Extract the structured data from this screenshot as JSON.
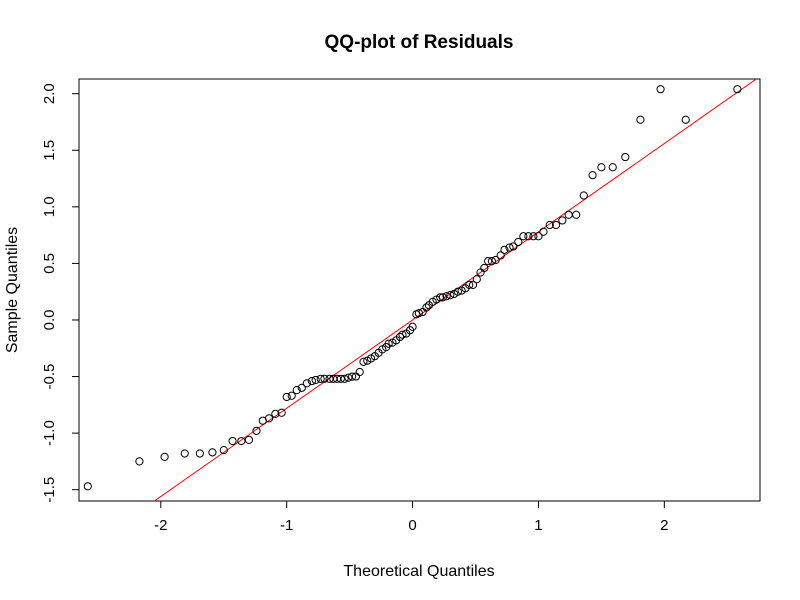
{
  "chart_data": {
    "type": "scatter",
    "title": "QQ-plot of Residuals",
    "xlabel": "Theoretical Quantiles",
    "ylabel": "Sample Quantiles",
    "xlim": [
      -2.65,
      2.76
    ],
    "ylim": [
      -1.6,
      2.13
    ],
    "xticks": [
      -2,
      -1,
      0,
      1,
      2
    ],
    "xtick_labels": [
      "-2",
      "-1",
      "0",
      "1",
      "2"
    ],
    "yticks": [
      -1.5,
      -1.0,
      -0.5,
      0.0,
      0.5,
      1.0,
      1.5,
      2.0
    ],
    "ytick_labels": [
      "-1.5",
      "-1.0",
      "-0.5",
      "0.0",
      "0.5",
      "1.0",
      "1.5",
      "2.0"
    ],
    "grid": false,
    "point_color": "#000000",
    "line_color": "#ff0000",
    "reference_line": {
      "intercept": 0.0,
      "slope": 0.78
    },
    "x": [
      -2.58,
      -2.17,
      -1.97,
      -1.81,
      -1.69,
      -1.59,
      -1.5,
      -1.43,
      -1.36,
      -1.3,
      -1.24,
      -1.19,
      -1.14,
      -1.09,
      -1.04,
      -1.0,
      -0.96,
      -0.92,
      -0.88,
      -0.84,
      -0.8,
      -0.77,
      -0.73,
      -0.7,
      -0.66,
      -0.63,
      -0.6,
      -0.57,
      -0.54,
      -0.51,
      -0.48,
      -0.45,
      -0.42,
      -0.39,
      -0.36,
      -0.33,
      -0.3,
      -0.27,
      -0.24,
      -0.21,
      -0.19,
      -0.16,
      -0.13,
      -0.1,
      -0.08,
      -0.05,
      -0.02,
      0.0,
      0.03,
      0.05,
      0.08,
      0.11,
      0.13,
      0.16,
      0.19,
      0.22,
      0.24,
      0.27,
      0.3,
      0.33,
      0.36,
      0.39,
      0.42,
      0.45,
      0.48,
      0.51,
      0.54,
      0.57,
      0.6,
      0.63,
      0.66,
      0.7,
      0.73,
      0.77,
      0.8,
      0.84,
      0.88,
      0.92,
      0.96,
      1.0,
      1.04,
      1.09,
      1.14,
      1.19,
      1.24,
      1.3,
      1.36,
      1.43,
      1.5,
      1.59,
      1.69,
      1.81,
      1.97,
      2.17,
      2.58
    ],
    "y": [
      -1.47,
      -1.25,
      -1.21,
      -1.18,
      -1.18,
      -1.17,
      -1.15,
      -1.07,
      -1.07,
      -1.06,
      -0.98,
      -0.89,
      -0.87,
      -0.83,
      -0.82,
      -0.68,
      -0.67,
      -0.62,
      -0.6,
      -0.56,
      -0.54,
      -0.53,
      -0.52,
      -0.52,
      -0.52,
      -0.52,
      -0.52,
      -0.52,
      -0.52,
      -0.51,
      -0.5,
      -0.5,
      -0.46,
      -0.37,
      -0.36,
      -0.34,
      -0.32,
      -0.29,
      -0.26,
      -0.24,
      -0.21,
      -0.2,
      -0.18,
      -0.15,
      -0.13,
      -0.12,
      -0.09,
      -0.06,
      0.05,
      0.06,
      0.07,
      0.11,
      0.13,
      0.16,
      0.18,
      0.2,
      0.2,
      0.21,
      0.22,
      0.23,
      0.25,
      0.26,
      0.28,
      0.31,
      0.31,
      0.36,
      0.42,
      0.46,
      0.52,
      0.52,
      0.53,
      0.57,
      0.62,
      0.64,
      0.65,
      0.69,
      0.74,
      0.74,
      0.74,
      0.74,
      0.78,
      0.84,
      0.84,
      0.88,
      0.93,
      0.93,
      1.1,
      1.28,
      1.35,
      1.35,
      1.44,
      1.77,
      2.04,
      1.77,
      2.04
    ]
  }
}
